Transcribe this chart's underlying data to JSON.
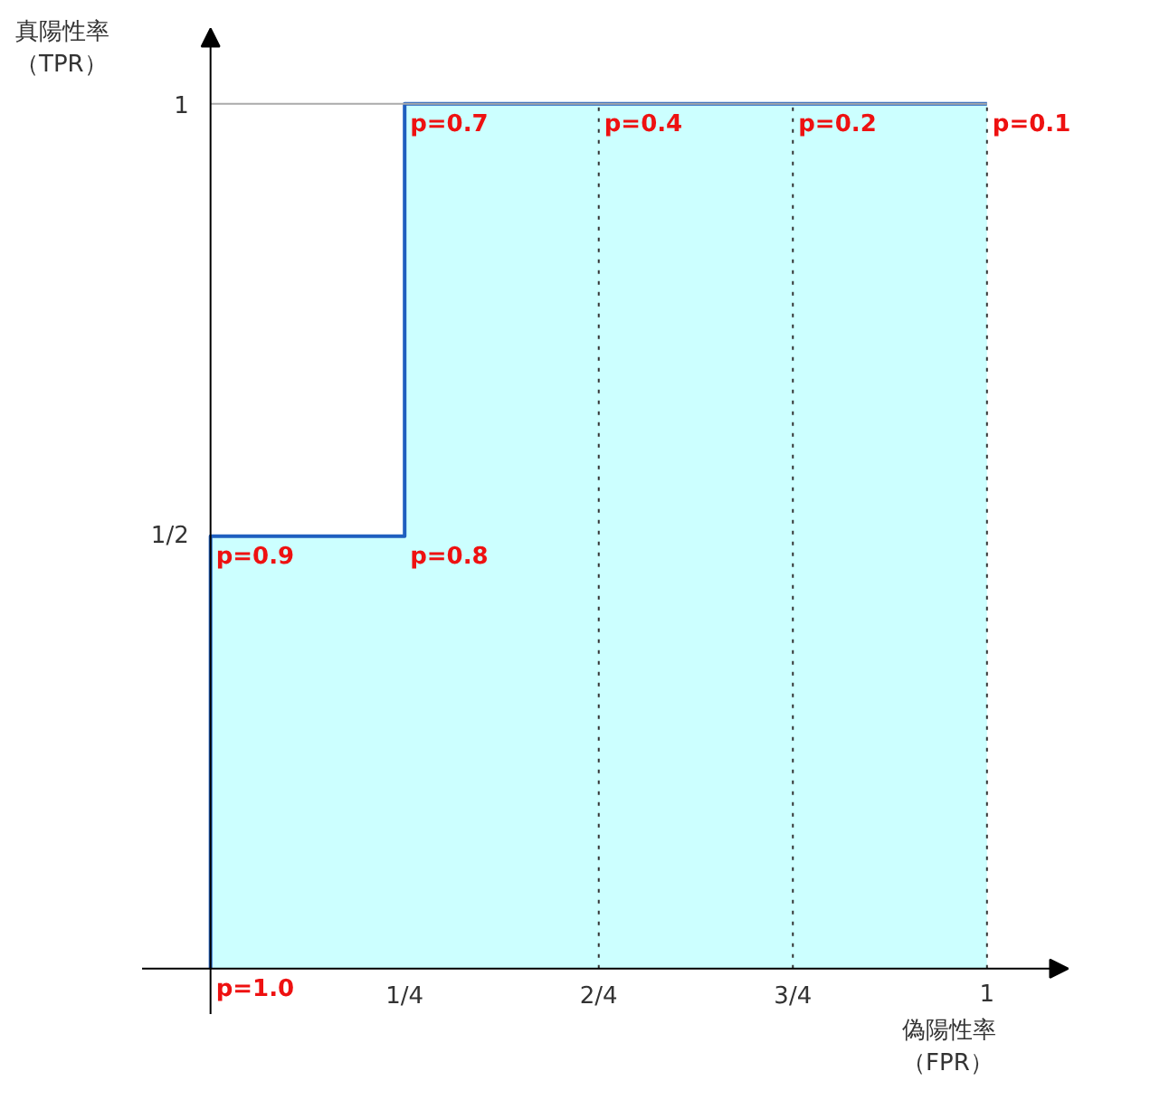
{
  "chart_data": {
    "type": "area",
    "xlabel": "偽陽性率（FPR）",
    "ylabel": "真陽性率（TPR）",
    "x": [
      0,
      0,
      0.25,
      0.25,
      1
    ],
    "series": [
      {
        "color": "#1f5fbf",
        "values": [
          0,
          0.5,
          0.5,
          1,
          1
        ]
      }
    ],
    "xlim": [
      -0.27,
      1.224
    ],
    "ylim": [
      -0.153,
      1.119
    ],
    "xticks": [
      {
        "value": 0.25,
        "label": "1/4"
      },
      {
        "value": 0.5,
        "label": "2/4"
      },
      {
        "value": 0.75,
        "label": "3/4"
      },
      1
    ],
    "yticks": [
      {
        "value": 0.5,
        "label": "1/2"
      },
      1
    ],
    "ref_lines": [
      {
        "axis": "x",
        "value": 0.5,
        "color": "#333333",
        "line_style": "dotted"
      },
      {
        "axis": "x",
        "value": 0.75,
        "color": "#333333",
        "line_style": "dotted"
      },
      {
        "axis": "x",
        "value": 1,
        "color": "#333333",
        "line_style": "dotted"
      },
      {
        "axis": "y",
        "value": 1,
        "color": "#aaaaaa",
        "line_style": "solid"
      }
    ],
    "annotations": [
      {
        "text": "p=1.0",
        "x": 0,
        "y": 0
      },
      {
        "text": "p=0.9",
        "x": 0,
        "y": 0.5
      },
      {
        "text": "p=0.8",
        "x": 0.25,
        "y": 0.5
      },
      {
        "text": "p=0.7",
        "x": 0.25,
        "y": 1
      },
      {
        "text": "p=0.4",
        "x": 0.5,
        "y": 1
      },
      {
        "text": "p=0.2",
        "x": 0.75,
        "y": 1
      },
      {
        "text": "p=0.1",
        "x": 1,
        "y": 1
      }
    ],
    "grid": false
  }
}
